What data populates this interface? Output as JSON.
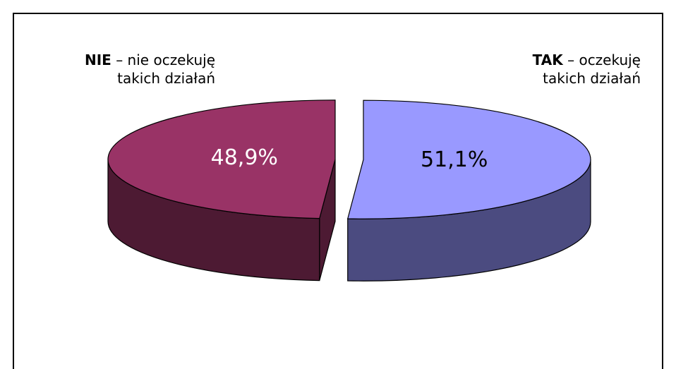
{
  "chart_data": {
    "type": "pie3d",
    "categories": [
      "TAK",
      "NIE"
    ],
    "category_descriptions": [
      [
        "– oczekuję",
        "takich działań"
      ],
      [
        "– nie oczekuję",
        "takich działań"
      ]
    ],
    "values": [
      51.1,
      48.9
    ],
    "value_labels": [
      "51,1%",
      "48,9%"
    ],
    "colors": [
      "#9999ff",
      "#993366"
    ],
    "side_colors": [
      "#4b4b80",
      "#4d1a33"
    ],
    "value_label_colors": [
      "#000000",
      "#ffffff"
    ]
  }
}
